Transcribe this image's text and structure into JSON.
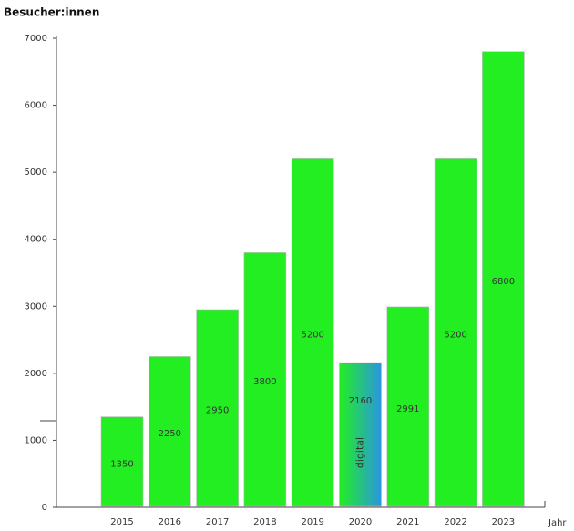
{
  "chart_data": {
    "type": "bar",
    "y_label": "Besucher:innen",
    "x_label": "Jahr",
    "categories": [
      "2015",
      "2016",
      "2017",
      "2018",
      "2019",
      "2020",
      "2021",
      "2022",
      "2023"
    ],
    "values": [
      1350,
      2250,
      2950,
      3800,
      5200,
      2160,
      2991,
      5200,
      6800
    ],
    "color": "#22ee22",
    "highlight": {
      "category": "2020",
      "gradient": [
        "#22ee22",
        "#2a96e0"
      ],
      "annotation": "digital"
    },
    "ylim": [
      0,
      7000
    ],
    "yticks": [
      0,
      1000,
      2000,
      3000,
      4000,
      5000,
      6000,
      7000
    ]
  }
}
